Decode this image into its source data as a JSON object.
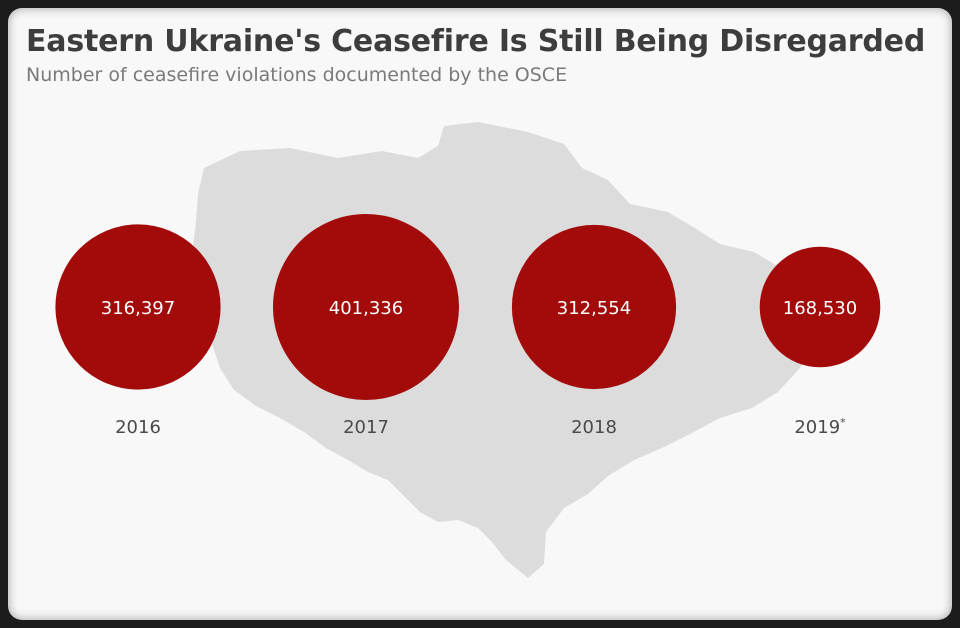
{
  "header": {
    "title": "Eastern Ukraine's Ceasefire Is Still Being Disregarded",
    "subtitle": "Number of ceasefire violations documented by the OSCE"
  },
  "map": {
    "icon": "ukraine-map-silhouette",
    "color": "#dcdcdc"
  },
  "colors": {
    "bubble": "#a30b0b",
    "background": "#f8f8f8"
  },
  "chart_data": {
    "type": "bubble",
    "title": "Eastern Ukraine's Ceasefire Is Still Being Disregarded",
    "subtitle": "Number of ceasefire violations documented by the OSCE",
    "categories": [
      "2016",
      "2017",
      "2018",
      "2019"
    ],
    "category_markers": [
      "",
      "",
      "",
      "*"
    ],
    "values": [
      316397,
      401336,
      312554,
      168530
    ],
    "value_labels": [
      "316,397",
      "401,336",
      "312,554",
      "168,530"
    ]
  }
}
